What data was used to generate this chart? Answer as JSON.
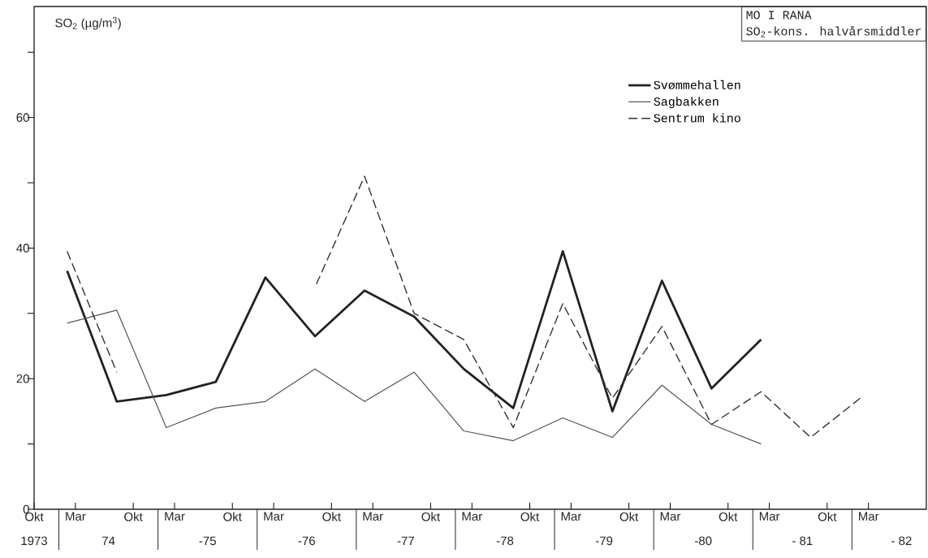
{
  "chart_data": {
    "type": "line",
    "title": "MO I RANA",
    "subtitle": "SO$_{2}$-kons. halvårsmiddler",
    "ylabel": "SO$_{2}$ (µg/m$^{3}$)",
    "x": [
      "1974-02",
      "1974-08",
      "1975-02",
      "1975-08",
      "1976-02",
      "1976-08",
      "1977-02",
      "1977-08",
      "1978-02",
      "1978-08",
      "1979-02",
      "1979-08",
      "1980-02",
      "1980-08",
      "1981-02",
      "1981-08",
      "1982-02"
    ],
    "series": [
      {
        "name": "Svømmehallen",
        "color": "#222222",
        "line_style": "solid",
        "values": [
          36.5,
          16.5,
          17.5,
          19.5,
          35.5,
          26.5,
          33.5,
          29.5,
          21.5,
          15.5,
          39.5,
          15,
          35,
          18.5,
          26,
          null,
          null
        ]
      },
      {
        "name": "Sagbakken",
        "color": "#555555",
        "line_style": "solid",
        "values": [
          28.5,
          30.5,
          12.5,
          15.5,
          16.5,
          21.5,
          16.5,
          21,
          12,
          10.5,
          14,
          11,
          19,
          13,
          10,
          null,
          null
        ]
      },
      {
        "name": "Sentrum kino",
        "color": "#333333",
        "line_style": "dashed",
        "values": [
          39.5,
          21,
          null,
          null,
          null,
          34,
          51,
          30,
          26,
          12.5,
          31.5,
          17,
          28,
          13,
          18,
          11,
          17
        ]
      }
    ],
    "xlim": [
      "1973-10",
      "1982-10"
    ],
    "ylim": [
      0,
      77
    ],
    "xticks": [
      {
        "value": "1973-10",
        "label": "Okt"
      },
      {
        "value": "1974-03",
        "label": "Mar"
      },
      {
        "value": "1974-10",
        "label": "Okt"
      },
      {
        "value": "1975-03",
        "label": "Mar"
      },
      {
        "value": "1975-10",
        "label": "Okt"
      },
      {
        "value": "1976-03",
        "label": "Mar"
      },
      {
        "value": "1976-10",
        "label": "Okt"
      },
      {
        "value": "1977-03",
        "label": "Mar"
      },
      {
        "value": "1977-10",
        "label": "Okt"
      },
      {
        "value": "1978-03",
        "label": "Mar"
      },
      {
        "value": "1978-10",
        "label": "Okt"
      },
      {
        "value": "1979-03",
        "label": "Mar"
      },
      {
        "value": "1979-10",
        "label": "Okt"
      },
      {
        "value": "1980-03",
        "label": "Mar"
      },
      {
        "value": "1980-10",
        "label": "Okt"
      },
      {
        "value": "1981-03",
        "label": "Mar"
      },
      {
        "value": "1981-10",
        "label": "Okt"
      },
      {
        "value": "1982-03",
        "label": "Mar"
      }
    ],
    "yticks": [
      0,
      {
        "value": 10,
        "label": null
      },
      20,
      {
        "value": 30,
        "label": null
      },
      40,
      {
        "value": 50,
        "label": null
      },
      60,
      {
        "value": 70,
        "label": null
      }
    ],
    "annotations": [
      "1973",
      "74",
      "-75",
      "-76",
      "-77",
      "-78",
      "-79",
      "-80",
      "- 81",
      "- 82"
    ],
    "legend": "top right",
    "marker": "none"
  }
}
